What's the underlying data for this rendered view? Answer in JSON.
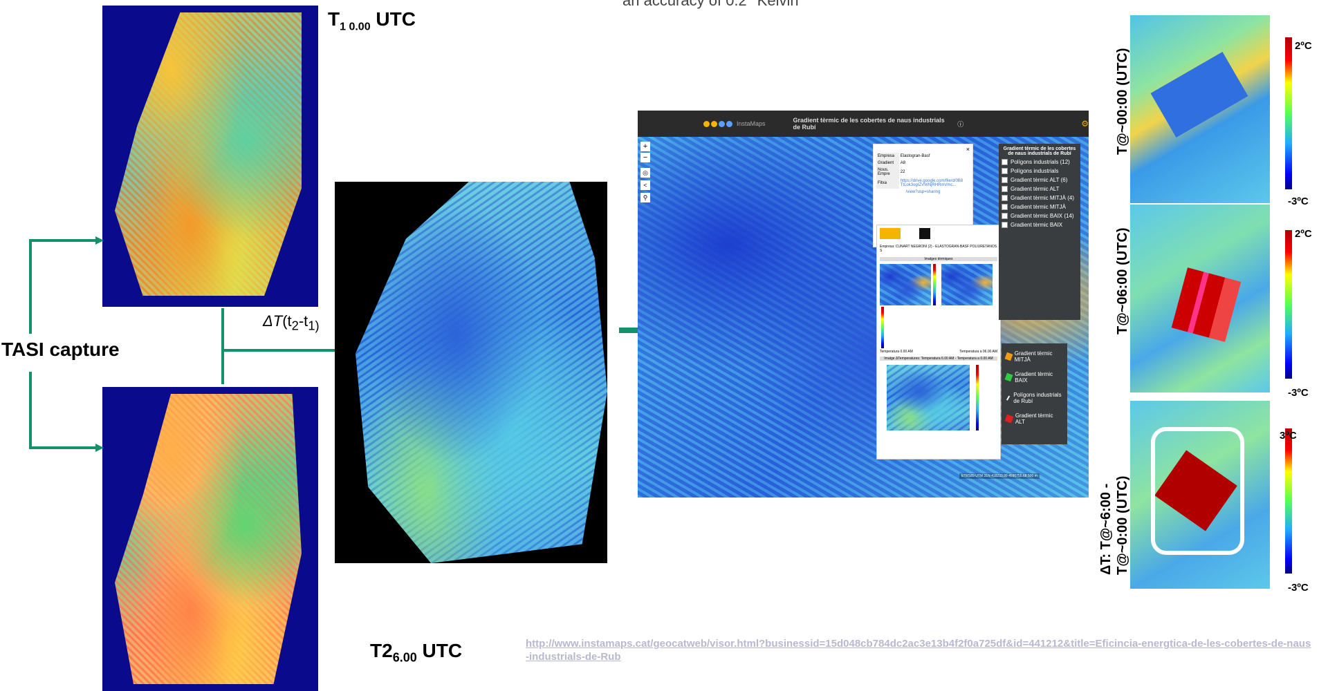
{
  "top_text": "an accuracy of 0.2 °Kelvin",
  "labels": {
    "t1": "T",
    "t1_sub": "1 0.00",
    "t1_suffix": " UTC",
    "t2": "T2",
    "t2_sub": "6.00",
    "t2_suffix": " UTC",
    "tasi": "TASI capture",
    "delta_prefix": "ΔT",
    "delta_paren_open": "(t",
    "delta_sub2": "2",
    "delta_mid": "-t",
    "delta_sub1": "1)"
  },
  "link": "http://www.instamaps.cat/geocatweb/visor.html?businessid=15d048cb784dc2ac3e13b4f2f0a725df&id=441212&title=Eficincia-energtica-de-les-cobertes-de-naus-industrials-de-Rub",
  "instamaps": {
    "brand": "InstaMaps",
    "title": "Gradient tèrmic de les cobertes de naus industrials de Rubí",
    "popup_rows": [
      {
        "k": "Empresa",
        "v": "Elastogran-Basf"
      },
      {
        "k": "Gradient",
        "v": "A8"
      },
      {
        "k": "Nous. Empre",
        "v": "22"
      },
      {
        "k": "Fitxa",
        "v": "https://drive.google.com/file/d/0B8TtLok3ogIZVWNjRHRmVmc..."
      }
    ],
    "popup_link2": "/view?usp=sharing",
    "report_company": "Empresa: CUNART NEGRONI (2) - ELASTOGRAN-BASF POLIURETANOS S",
    "report_section1": "Imatges tèrmiques",
    "report_caption1": "Temperatura 0.00 AM",
    "report_caption2": "Temperatura a 06.00 AM",
    "report_section2": "Imatge ΔTemperatures: Temperatura 6.00 AM - Temperatura a 0.00 AM",
    "legend_title": "Gradient tèrmic de les cobertes de naus industrials de Rubí",
    "legend_items": [
      "Polígons industrials (12)",
      "Polígons industrials",
      "Gradient tèrmic ALT (6)",
      "Gradient tèrmic ALT",
      "Gradient tèrmic MITJÀ (4)",
      "Gradient tèrmic MITJÀ",
      "Gradient tèrmic BAIX (14)",
      "Gradient tèrmic BAIX"
    ],
    "symbol_legend": [
      {
        "label": "Gradient tèrmic MITJÀ",
        "color": "#f39c12"
      },
      {
        "label": "Gradient tèrmic BAIX",
        "color": "#2ecc40"
      },
      {
        "label": "Polígons industrials de Rubí",
        "color": "#ffffff"
      },
      {
        "label": "Gradient tèrmic ALT",
        "color": "#e02020"
      }
    ],
    "footer": "ETRS89 UTM 31N 418233.99 4590755.68  500 m"
  },
  "right_panels": [
    {
      "time_label": "T@~00:00 (UTC)",
      "top": "2ºC",
      "bottom": "-3ºC"
    },
    {
      "time_label": "T@~06:00 (UTC)",
      "top": "2ºC",
      "bottom": "-3ºC"
    },
    {
      "time_label_line1": "ΔT: T@~6:00 -",
      "time_label_line2": "T@~0:00 (UTC)",
      "top": "3ºC",
      "bottom": "-3ºC"
    }
  ],
  "colors": {
    "arrow": "#14906a",
    "navy": "#0a0a8c",
    "map_header": "#2b2b2b"
  }
}
